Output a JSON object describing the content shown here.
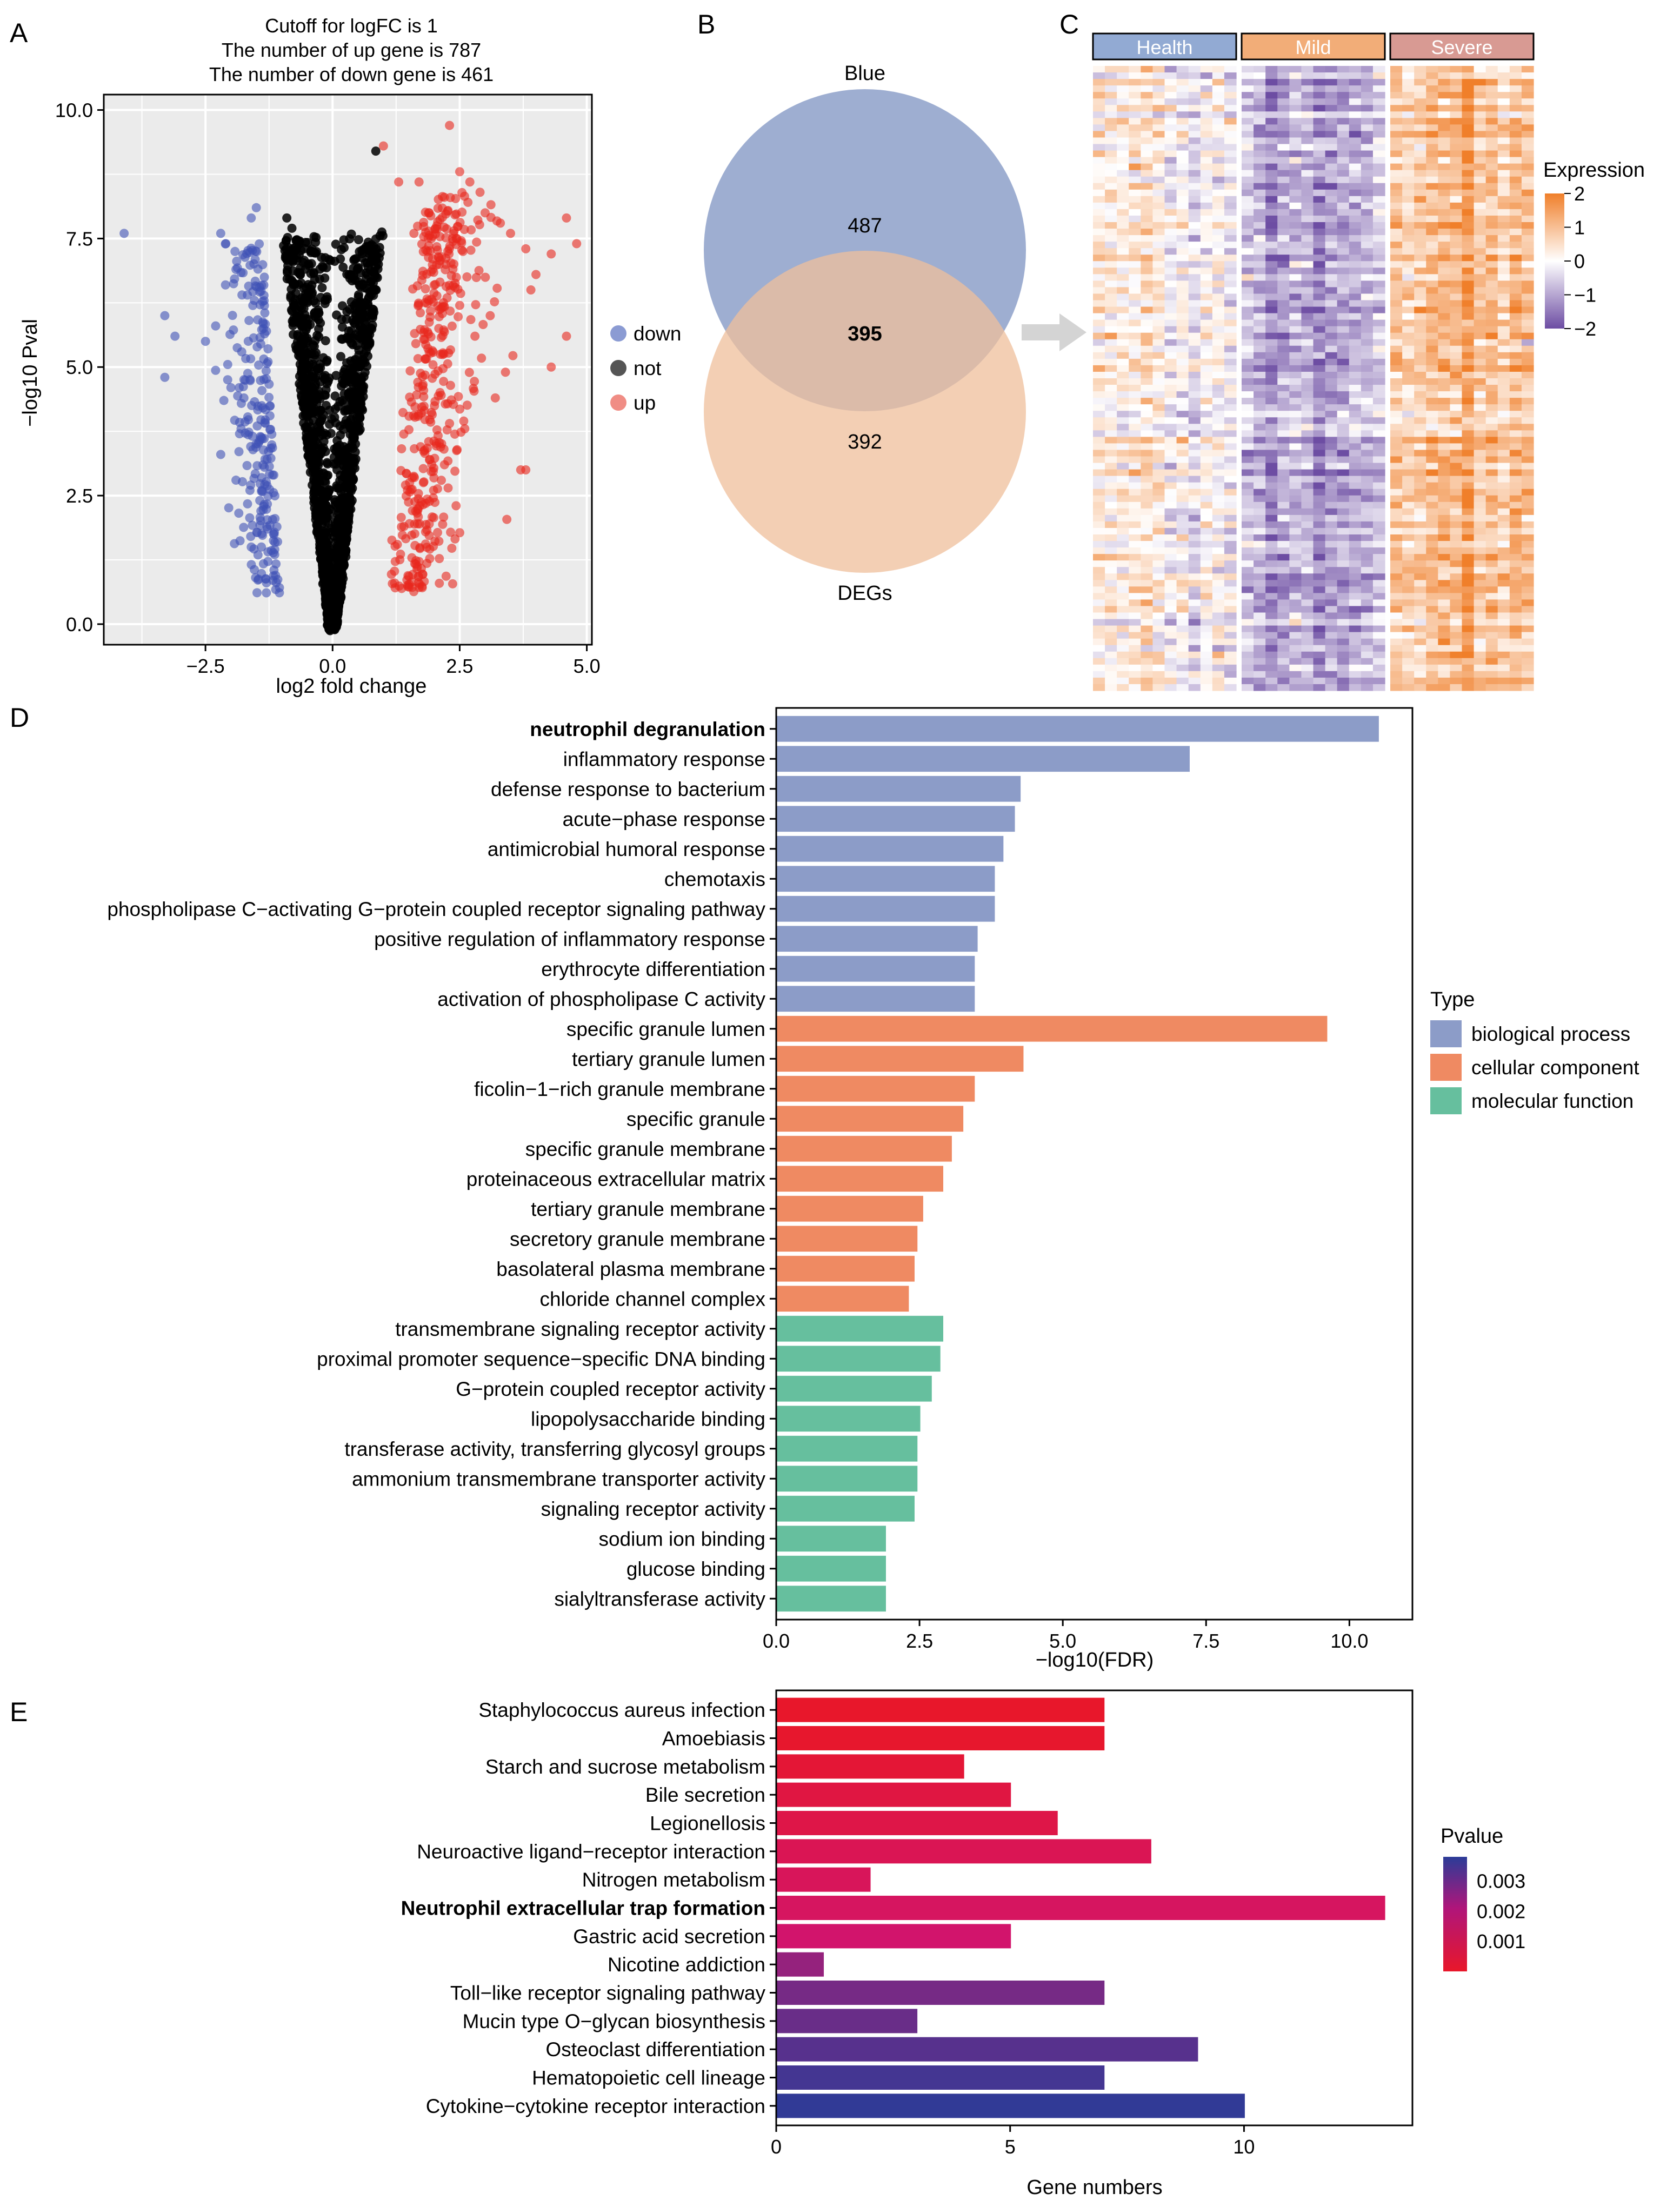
{
  "panel_labels": {
    "a": "A",
    "b": "B",
    "c": "C",
    "d": "D",
    "e": "E"
  },
  "chart_data": [
    {
      "id": "volcano",
      "type": "scatter",
      "title_lines": [
        "Cutoff for logFC is 1",
        "The number of up gene is 787",
        "The number of down gene is 461"
      ],
      "xlabel": "log2 fold change",
      "ylabel": "−log10 Pval",
      "xlim": [
        -4.5,
        5.1
      ],
      "ylim": [
        -0.4,
        10.3
      ],
      "xticks": [
        -2.5,
        0.0,
        2.5,
        5.0
      ],
      "xtick_labels": [
        "−2.5",
        "0.0",
        "2.5",
        "5.0"
      ],
      "yticks": [
        0.0,
        2.5,
        5.0,
        7.5,
        10.0
      ],
      "ytick_labels": [
        "0.0",
        "2.5",
        "5.0",
        "7.5",
        "10.0"
      ],
      "grid": true,
      "legend": [
        {
          "label": "down",
          "color": "#8b9bd3"
        },
        {
          "label": "not",
          "color": "#555555"
        },
        {
          "label": "up",
          "color": "#f08d85"
        }
      ],
      "series_colors": {
        "down": "#3f51b5",
        "not": "#000000",
        "up": "#e8271d"
      },
      "counts": {
        "up": 787,
        "down": 461
      },
      "logfc_cutoff": 1,
      "outlier_points": {
        "down": [
          [
            -4.1,
            7.6
          ],
          [
            -3.3,
            6.0
          ],
          [
            -3.1,
            5.6
          ],
          [
            -3.3,
            4.8
          ],
          [
            -2.5,
            5.5
          ],
          [
            -2.2,
            7.6
          ],
          [
            -2.1,
            7.4
          ],
          [
            -1.6,
            7.9
          ],
          [
            -1.5,
            8.1
          ],
          [
            -1.9,
            6.9
          ],
          [
            -2.3,
            5.8
          ],
          [
            -2.0,
            4.6
          ],
          [
            -1.8,
            3.8
          ],
          [
            -1.6,
            1.5
          ],
          [
            -1.4,
            1.5
          ],
          [
            -2.2,
            3.3
          ],
          [
            -1.9,
            2.8
          ]
        ],
        "up": [
          [
            1.0,
            9.3
          ],
          [
            1.3,
            8.6
          ],
          [
            1.7,
            8.6
          ],
          [
            2.3,
            9.7
          ],
          [
            2.5,
            8.8
          ],
          [
            2.7,
            8.6
          ],
          [
            2.9,
            8.4
          ],
          [
            3.0,
            8.0
          ],
          [
            3.3,
            7.8
          ],
          [
            3.5,
            7.6
          ],
          [
            3.8,
            7.3
          ],
          [
            3.9,
            6.5
          ],
          [
            4.0,
            6.8
          ],
          [
            4.3,
            7.2
          ],
          [
            4.6,
            7.9
          ],
          [
            4.8,
            7.4
          ],
          [
            4.6,
            5.6
          ],
          [
            4.3,
            5.0
          ],
          [
            3.8,
            3.0
          ],
          [
            3.7,
            3.0
          ],
          [
            3.2,
            4.4
          ],
          [
            3.4,
            4.9
          ],
          [
            2.8,
            5.6
          ],
          [
            2.6,
            3.8
          ],
          [
            2.2,
            3.1
          ],
          [
            2.5,
            6.2
          ],
          [
            3.1,
            6.0
          ],
          [
            2.1,
            7.0
          ],
          [
            1.6,
            7.6
          ],
          [
            1.9,
            8.0
          ]
        ],
        "not": [
          [
            0.85,
            9.2
          ],
          [
            -0.9,
            7.9
          ],
          [
            -0.8,
            7.7
          ],
          [
            0.9,
            7.0
          ]
        ]
      }
    },
    {
      "id": "venn",
      "type": "venn",
      "sets": [
        {
          "label": "Blue",
          "only": 487,
          "color": "#8da0c9"
        },
        {
          "label": "DEGs",
          "only": 392,
          "color": "#efbf9b"
        }
      ],
      "intersection": 395
    },
    {
      "id": "heatmap",
      "type": "heatmap",
      "groups": [
        {
          "label": "Health",
          "color": "#92aad3",
          "base": 0.05
        },
        {
          "label": "Mild",
          "color": "#f2ad78",
          "base": -1.05
        },
        {
          "label": "Severe",
          "color": "#d89a93",
          "base": 0.95
        }
      ],
      "legend_title": "Expression",
      "scale_range": [
        -2,
        2
      ],
      "scale_ticks": [
        2,
        1,
        0,
        -1,
        -2
      ],
      "scale_tick_labels": [
        "2",
        "1",
        "0",
        "−1",
        "−2"
      ],
      "low_color": "#6d4da3",
      "mid_color": "#ffffff",
      "high_color": "#f07f2a"
    },
    {
      "id": "go",
      "type": "bar",
      "orientation": "horizontal",
      "xlabel": "−log10(FDR)",
      "xlim": [
        0,
        11.1
      ],
      "xticks": [
        0,
        2.5,
        5,
        7.5,
        10
      ],
      "xtick_labels": [
        "0.0",
        "2.5",
        "5.0",
        "7.5",
        "10.0"
      ],
      "legend_title": "Type",
      "legend": [
        {
          "label": "biological process",
          "color": "#8c9cc8"
        },
        {
          "label": "cellular component",
          "color": "#ef8a62"
        },
        {
          "label": "molecular function",
          "color": "#66bf9e"
        }
      ],
      "bold_label": "neutrophil degranulation",
      "bars": [
        {
          "label": "neutrophil degranulation",
          "value": 10.5,
          "type": 0
        },
        {
          "label": "inflammatory response",
          "value": 7.2,
          "type": 0
        },
        {
          "label": "defense response to bacterium",
          "value": 4.25,
          "type": 0
        },
        {
          "label": "acute−phase response",
          "value": 4.15,
          "type": 0
        },
        {
          "label": "antimicrobial humoral response",
          "value": 3.95,
          "type": 0
        },
        {
          "label": "chemotaxis",
          "value": 3.8,
          "type": 0
        },
        {
          "label": "phospholipase C−activating G−protein coupled receptor signaling pathway",
          "value": 3.8,
          "type": 0
        },
        {
          "label": "positive regulation of inflammatory response",
          "value": 3.5,
          "type": 0
        },
        {
          "label": "erythrocyte differentiation",
          "value": 3.45,
          "type": 0
        },
        {
          "label": "activation of phospholipase C activity",
          "value": 3.45,
          "type": 0
        },
        {
          "label": "specific granule lumen",
          "value": 9.6,
          "type": 1
        },
        {
          "label": "tertiary granule lumen",
          "value": 4.3,
          "type": 1
        },
        {
          "label": "ficolin−1−rich granule membrane",
          "value": 3.45,
          "type": 1
        },
        {
          "label": "specific granule",
          "value": 3.25,
          "type": 1
        },
        {
          "label": "specific granule membrane",
          "value": 3.05,
          "type": 1
        },
        {
          "label": "proteinaceous extracellular matrix",
          "value": 2.9,
          "type": 1
        },
        {
          "label": "tertiary granule membrane",
          "value": 2.55,
          "type": 1
        },
        {
          "label": "secretory granule membrane",
          "value": 2.45,
          "type": 1
        },
        {
          "label": "basolateral plasma membrane",
          "value": 2.4,
          "type": 1
        },
        {
          "label": "chloride channel complex",
          "value": 2.3,
          "type": 1
        },
        {
          "label": "transmembrane signaling receptor activity",
          "value": 2.9,
          "type": 2
        },
        {
          "label": "proximal promoter sequence−specific DNA binding",
          "value": 2.85,
          "type": 2
        },
        {
          "label": "G−protein coupled receptor activity",
          "value": 2.7,
          "type": 2
        },
        {
          "label": "lipopolysaccharide binding",
          "value": 2.5,
          "type": 2
        },
        {
          "label": "transferase activity, transferring glycosyl groups",
          "value": 2.45,
          "type": 2
        },
        {
          "label": "ammonium transmembrane transporter activity",
          "value": 2.45,
          "type": 2
        },
        {
          "label": "signaling receptor activity",
          "value": 2.4,
          "type": 2
        },
        {
          "label": "sodium ion binding",
          "value": 1.9,
          "type": 2
        },
        {
          "label": "glucose binding",
          "value": 1.9,
          "type": 2
        },
        {
          "label": "sialyltransferase activity",
          "value": 1.9,
          "type": 2
        }
      ]
    },
    {
      "id": "kegg",
      "type": "bar",
      "orientation": "horizontal",
      "xlabel": "Gene numbers",
      "xlim": [
        0,
        13.6
      ],
      "xticks": [
        0,
        5,
        10
      ],
      "xtick_labels": [
        "0",
        "5",
        "10"
      ],
      "legend_title": "Pvalue",
      "color_scale": {
        "low": "#e8172a",
        "mid": "#d1146e",
        "high": "#2b3c98",
        "range": [
          0,
          0.0038
        ]
      },
      "scale_ticks": [
        0.003,
        0.002,
        0.001
      ],
      "scale_tick_labels": [
        "0.003",
        "0.002",
        "0.001"
      ],
      "bold_label": "Neutrophil extracellular trap formation",
      "bars": [
        {
          "label": "Staphylococcus aureus infection",
          "value": 7,
          "pvalue": 2e-05
        },
        {
          "label": "Amoebiasis",
          "value": 7,
          "pvalue": 5e-05
        },
        {
          "label": "Starch and sucrose metabolism",
          "value": 4,
          "pvalue": 0.0002
        },
        {
          "label": "Bile secretion",
          "value": 5,
          "pvalue": 0.0004
        },
        {
          "label": "Legionellosis",
          "value": 6,
          "pvalue": 0.0005
        },
        {
          "label": "Neuroactive ligand−receptor interaction",
          "value": 8,
          "pvalue": 0.0007
        },
        {
          "label": "Nitrogen metabolism",
          "value": 2,
          "pvalue": 0.0008
        },
        {
          "label": "Neutrophil extracellular trap formation",
          "value": 13,
          "pvalue": 0.0009
        },
        {
          "label": "Gastric acid secretion",
          "value": 5,
          "pvalue": 0.0011
        },
        {
          "label": "Nicotine addiction",
          "value": 1,
          "pvalue": 0.0021
        },
        {
          "label": "Toll−like receptor signaling pathway",
          "value": 7,
          "pvalue": 0.0026
        },
        {
          "label": "Mucin type O−glycan biosynthesis",
          "value": 3,
          "pvalue": 0.0028
        },
        {
          "label": "Osteoclast differentiation",
          "value": 9,
          "pvalue": 0.0031
        },
        {
          "label": "Hematopoietic cell lineage",
          "value": 7,
          "pvalue": 0.0034
        },
        {
          "label": "Cytokine−cytokine receptor interaction",
          "value": 10,
          "pvalue": 0.0037
        }
      ]
    }
  ]
}
